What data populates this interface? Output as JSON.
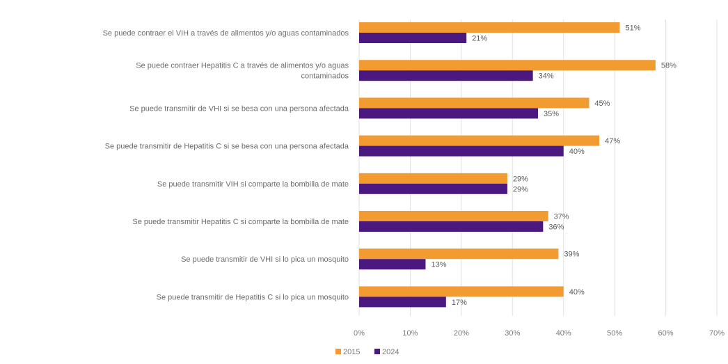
{
  "chart_data": {
    "type": "bar",
    "orientation": "horizontal",
    "categories": [
      [
        "Se puede contraer el VIH a través de alimentos y/o aguas contaminados"
      ],
      [
        "Se puede contraer Hepatitis C a través de alimentos y/o aguas",
        "contaminados"
      ],
      [
        "Se puede transmitir de VHI si se besa con una persona afectada"
      ],
      [
        "Se puede transmitir de Hepatitis C si se besa con una persona afectada"
      ],
      [
        "Se puede transmitir VIH  si comparte la bombilla de mate"
      ],
      [
        "Se puede transmitir Hepatitis C si comparte la bombilla de mate"
      ],
      [
        "Se puede transmitir de VHI si lo pica un mosquito"
      ],
      [
        "Se puede transmitir de Hepatitis C si lo pica un mosquito"
      ]
    ],
    "series": [
      {
        "name": "2015",
        "color": "#f29b30",
        "values": [
          51,
          58,
          45,
          47,
          29,
          37,
          39,
          40
        ]
      },
      {
        "name": "2024",
        "color": "#4b1880",
        "values": [
          21,
          34,
          35,
          40,
          29,
          36,
          13,
          17
        ]
      }
    ],
    "xlim": [
      0,
      70
    ],
    "xticks": [
      0,
      10,
      20,
      30,
      40,
      50,
      60,
      70
    ],
    "value_suffix": "%",
    "grid": true,
    "legend_position": "bottom"
  }
}
